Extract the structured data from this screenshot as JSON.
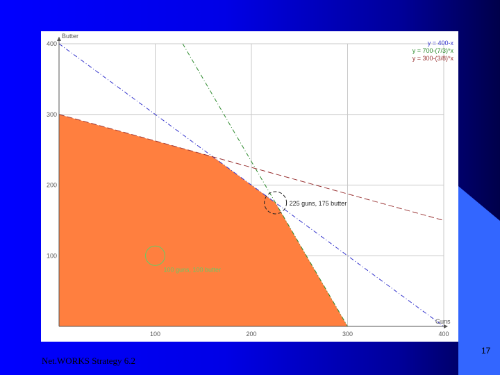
{
  "slide": {
    "footer_text": "Net.WORKS Strategy 6.2",
    "page_number": "17"
  },
  "colors": {
    "background": "#0000ff",
    "feasible_region": "#ff7f3f",
    "line_blue": "#3333cc",
    "line_green": "#2e8b2e",
    "line_red": "#993333",
    "annotation_green": "#66cc66"
  },
  "chart_data": {
    "type": "line",
    "title": "",
    "xlabel": "Guns",
    "ylabel": "Butter",
    "xlim": [
      0,
      400
    ],
    "ylim": [
      0,
      400
    ],
    "x_ticks": [
      100,
      200,
      300,
      400
    ],
    "y_ticks": [
      100,
      200,
      300,
      400
    ],
    "grid": true,
    "legend_position": "top-right",
    "series": [
      {
        "name": "y = 400-x",
        "color": "#3333cc",
        "dash": "dash-dot",
        "points": [
          [
            0,
            400
          ],
          [
            400,
            0
          ]
        ]
      },
      {
        "name": "y = 700-(7/3)*x",
        "color": "#2e8b2e",
        "dash": "dash-dot",
        "points": [
          [
            128.6,
            400
          ],
          [
            300,
            0
          ]
        ]
      },
      {
        "name": "y = 300-(3/8)*x",
        "color": "#993333",
        "dash": "dash",
        "points": [
          [
            0,
            300
          ],
          [
            400,
            150
          ]
        ]
      }
    ],
    "feasible_region": [
      [
        0,
        0
      ],
      [
        0,
        300
      ],
      [
        160,
        240
      ],
      [
        225,
        175
      ],
      [
        300,
        0
      ]
    ],
    "annotations": [
      {
        "text": "225 guns, 175 butter",
        "x": 225,
        "y": 175,
        "color": "#222222"
      },
      {
        "text": "100 guns, 100 butter",
        "x": 100,
        "y": 100,
        "color": "#66cc66"
      }
    ]
  }
}
